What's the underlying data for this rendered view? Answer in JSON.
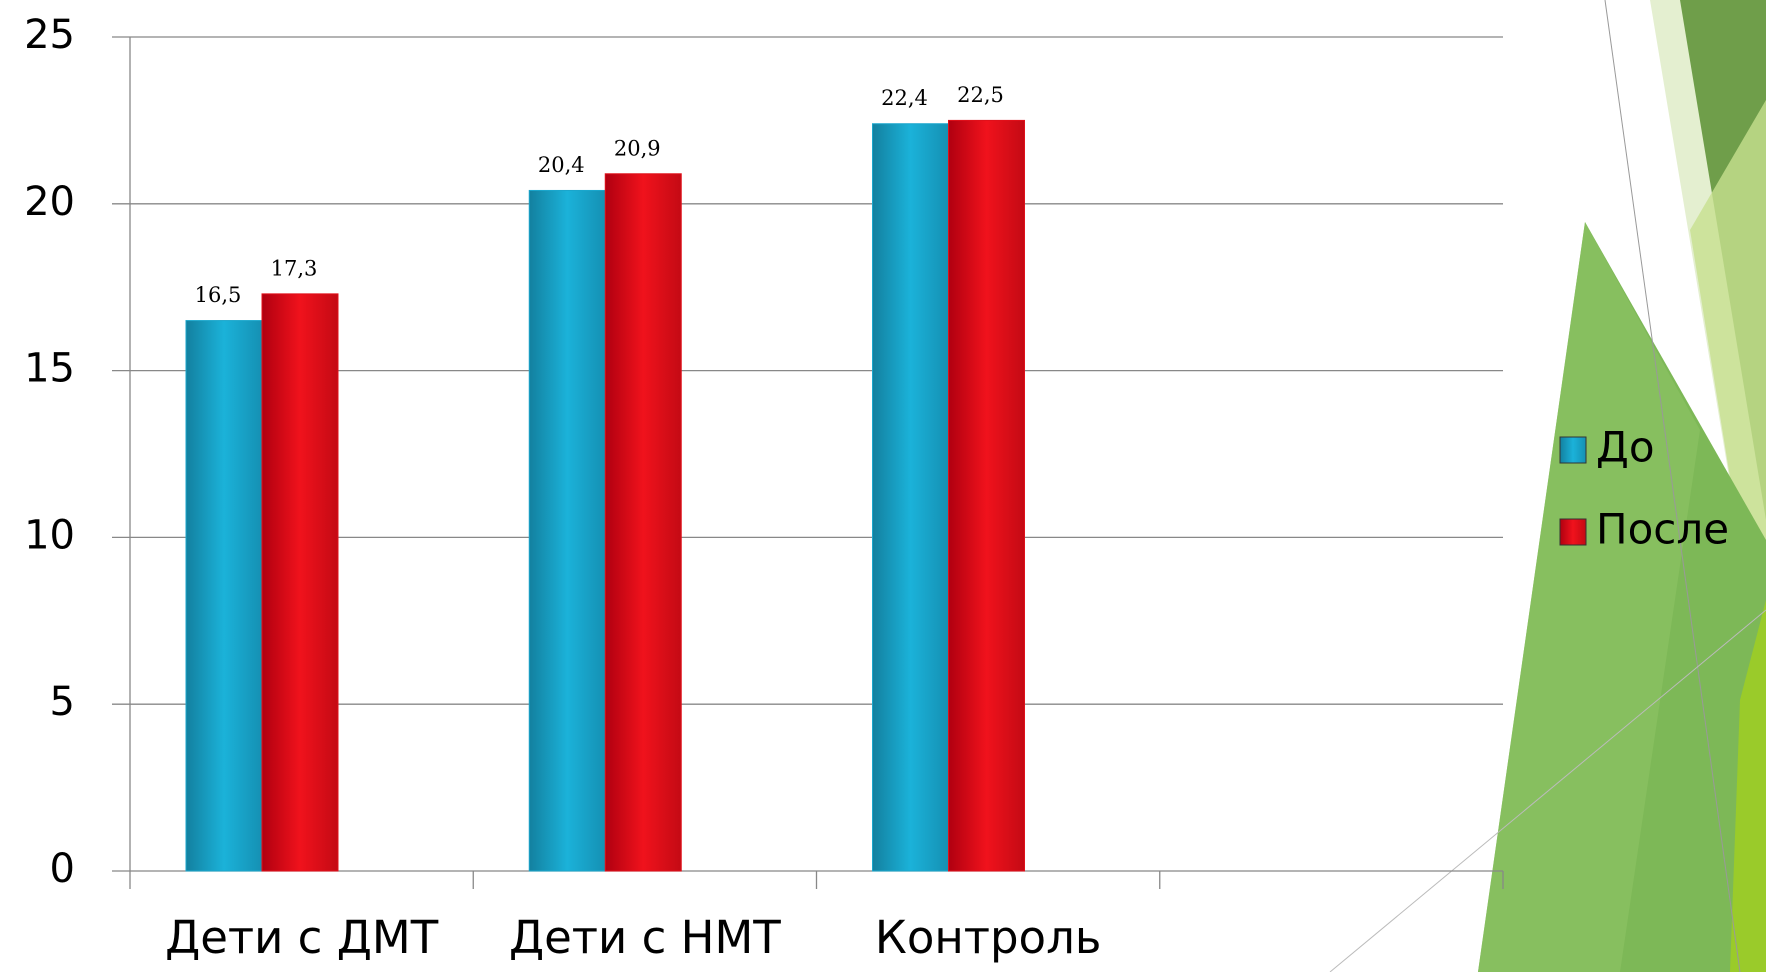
{
  "chart_data": {
    "type": "bar",
    "categories": [
      "Дети с ДМТ",
      "Дети с НМТ",
      "Контроль",
      null
    ],
    "series": [
      {
        "name": "До",
        "color": "#1aa6cc",
        "values": [
          16.5,
          20.4,
          22.4,
          null
        ],
        "value_labels": [
          "16,5",
          "20,4",
          "22,4",
          null
        ]
      },
      {
        "name": "После",
        "color": "#e0101a",
        "values": [
          17.3,
          20.9,
          22.5,
          null
        ],
        "value_labels": [
          "17,3",
          "20,9",
          "22,5",
          null
        ]
      }
    ],
    "ylim": [
      0,
      25
    ],
    "yticks": [
      0,
      5,
      10,
      15,
      20,
      25
    ],
    "grid": true,
    "legend": "right"
  }
}
